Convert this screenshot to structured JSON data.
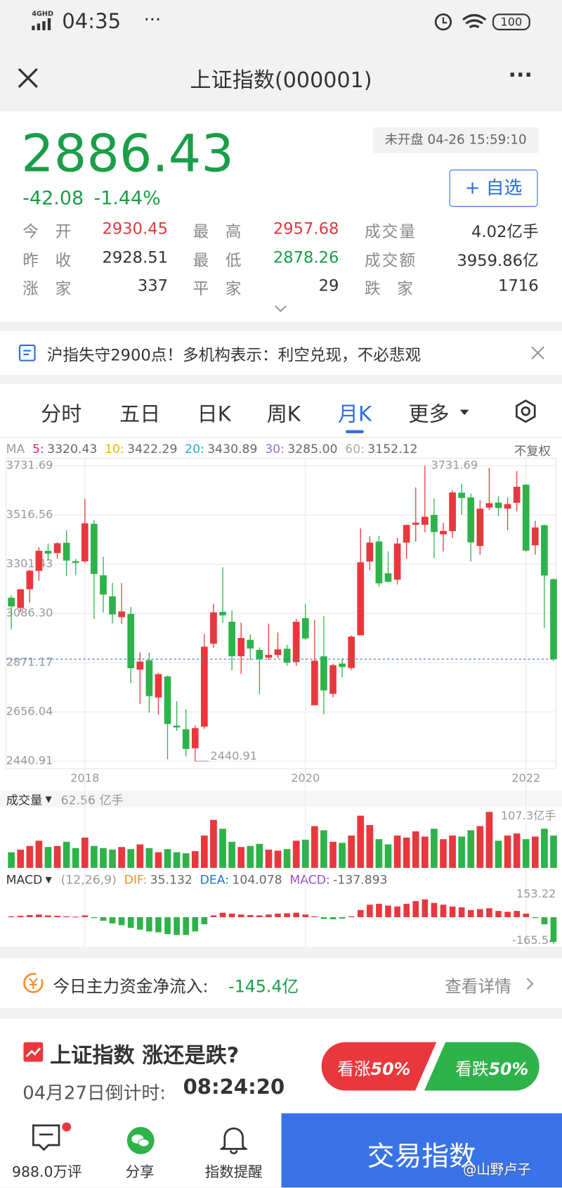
{
  "status_bar": {
    "network": "4GHD",
    "time": "04:35",
    "battery": "100"
  },
  "header": {
    "title": "上证指数(000001)"
  },
  "quote": {
    "price": "2886.43",
    "change": "-42.08",
    "change_pct": "-1.44%",
    "status": "未开盘 04-26 15:59:10",
    "watch_button": "+ 自选",
    "stats": [
      [
        {
          "label": "今开",
          "value": "2930.45",
          "color": "#e0393e"
        },
        {
          "label": "最高",
          "value": "2957.68",
          "color": "#e0393e"
        },
        {
          "label": "成交量",
          "value": "4.02亿手",
          "color": "#333333"
        }
      ],
      [
        {
          "label": "昨收",
          "value": "2928.51",
          "color": "#333333"
        },
        {
          "label": "最低",
          "value": "2878.26",
          "color": "#1a9e48"
        },
        {
          "label": "成交额",
          "value": "3959.86亿",
          "color": "#333333"
        }
      ],
      [
        {
          "label": "涨家",
          "value": "337",
          "color": "#333333"
        },
        {
          "label": "平家",
          "value": "29",
          "color": "#333333"
        },
        {
          "label": "跌家",
          "value": "1716",
          "color": "#333333"
        }
      ]
    ]
  },
  "news": {
    "text": "沪指失守2900点！多机构表示：利空兑现，不必悲观"
  },
  "tabs": {
    "items": [
      "分时",
      "五日",
      "日K",
      "周K",
      "月K",
      "更多"
    ],
    "active": 4
  },
  "chart": {
    "type": "candlestick",
    "up_color": "#e8383d",
    "down_color": "#2eb24a",
    "ma_label": "MA",
    "adjust": "不复权",
    "ma": [
      {
        "name": "5:",
        "value": 3320.43,
        "color": "#e0218a"
      },
      {
        "name": "10:",
        "value": 3422.29,
        "color": "#e6b800"
      },
      {
        "name": "20:",
        "value": 3430.89,
        "color": "#1ab0d8"
      },
      {
        "name": "30:",
        "value": 3285.0,
        "value_label": "3285.00",
        "color": "#9b6bd6"
      },
      {
        "name": "60:",
        "value": 3152.12,
        "color": "#b5a89a"
      }
    ],
    "ylim": [
      2440.91,
      3731.69
    ],
    "yticks": [
      3731.69,
      3516.56,
      3301.43,
      {
        "value": 3086.3,
        "label": "3086.30"
      },
      2871.17,
      2656.04,
      2440.91
    ],
    "xticks": [
      {
        "value": 8,
        "label": "2018"
      },
      {
        "value": 32,
        "label": "2020"
      },
      {
        "value": 56,
        "label": "2022"
      }
    ],
    "high_annotation": 3731.69,
    "low_annotation": 2440.91,
    "candles": [
      [
        3155,
        3165,
        3016,
        3117
      ],
      [
        3110,
        3192,
        3092,
        3192
      ],
      [
        3192,
        3276,
        3134,
        3273
      ],
      [
        3272,
        3376,
        3229,
        3360
      ],
      [
        3360,
        3392,
        3317,
        3348
      ],
      [
        3350,
        3398,
        3326,
        3393
      ],
      [
        3395,
        3450,
        3250,
        3317
      ],
      [
        3315,
        3325,
        3254,
        3307
      ],
      [
        3314,
        3587,
        3307,
        3480
      ],
      [
        3478,
        3495,
        3062,
        3259
      ],
      [
        3253,
        3334,
        3091,
        3169
      ],
      [
        3161,
        3220,
        3042,
        3082
      ],
      [
        3070,
        3219,
        3041,
        3095
      ],
      [
        3084,
        3115,
        2782,
        2847
      ],
      [
        2841,
        2916,
        2691,
        2876
      ],
      [
        2882,
        2915,
        2653,
        2725
      ],
      [
        2719,
        2827,
        2644,
        2821
      ],
      [
        2811,
        2815,
        2449,
        2603
      ],
      [
        2596,
        2703,
        2573,
        2588
      ],
      [
        2580,
        2667,
        2462,
        2494
      ],
      [
        2497,
        2597,
        2440.91,
        2585
      ],
      [
        2592,
        2997,
        2582,
        2941
      ],
      [
        2954,
        3129,
        2935,
        3091
      ],
      [
        3093,
        3288,
        3045,
        3078
      ],
      [
        3050,
        3100,
        2838,
        2899
      ],
      [
        2899,
        3047,
        2822,
        2979
      ],
      [
        2971,
        2995,
        2882,
        2933
      ],
      [
        2927,
        2938,
        2733,
        2886
      ],
      [
        2893,
        3042,
        2883,
        2905
      ],
      [
        2905,
        3003,
        2891,
        2929
      ],
      [
        2932,
        2949,
        2858,
        2871
      ],
      [
        2874,
        3063,
        2857,
        3050
      ],
      [
        3066,
        3127,
        2970,
        2977
      ],
      [
        2685,
        3058,
        2685,
        2880
      ],
      [
        2899,
        3074,
        2646,
        2750
      ],
      [
        2735,
        2866,
        2719,
        2860
      ],
      [
        2867,
        2891,
        2808,
        2852
      ],
      [
        2848,
        2990,
        2840,
        2985
      ],
      [
        2991,
        3458,
        2991,
        3310
      ],
      [
        3313,
        3424,
        3275,
        3396
      ],
      [
        3401,
        3425,
        3202,
        3218
      ],
      [
        3262,
        3358,
        3221,
        3225
      ],
      [
        3234,
        3417,
        3213,
        3392
      ],
      [
        3396,
        3474,
        3326,
        3473
      ],
      [
        3474,
        3637,
        3400,
        3483
      ],
      [
        3474,
        3731.69,
        3441,
        3509
      ],
      [
        3517,
        3588,
        3328,
        3442
      ],
      [
        3432,
        3482,
        3357,
        3447
      ],
      [
        3446,
        3625,
        3416,
        3615
      ],
      [
        3614,
        3654,
        3518,
        3591
      ],
      [
        3593,
        3610,
        3313,
        3397
      ],
      [
        3381,
        3581,
        3343,
        3544
      ],
      [
        3549,
        3723,
        3538,
        3568
      ],
      [
        3571,
        3599,
        3513,
        3547
      ],
      [
        3544,
        3592,
        3450,
        3564
      ],
      [
        3570,
        3708,
        3532,
        3640
      ],
      [
        3649,
        3651,
        3357,
        3361
      ],
      [
        3384,
        3491,
        3344,
        3462
      ],
      [
        3472,
        3475,
        3023,
        3252
      ],
      [
        3236,
        3239,
        2878.26,
        2886.43
      ]
    ],
    "volume": {
      "label": "成交量",
      "value_text": "62.56 亿手",
      "ylim": [
        0,
        107.3
      ],
      "yticks": [
        {
          "value": 107.3,
          "label": "107.3亿手"
        }
      ],
      "values": [
        30,
        35,
        42,
        52,
        40,
        42,
        50,
        38,
        58,
        42,
        38,
        35,
        40,
        36,
        45,
        38,
        30,
        36,
        30,
        28,
        32,
        62,
        92,
        75,
        50,
        40,
        42,
        46,
        35,
        33,
        36,
        52,
        54,
        80,
        72,
        50,
        48,
        62,
        100,
        82,
        55,
        45,
        62,
        58,
        70,
        60,
        75,
        55,
        62,
        60,
        72,
        80,
        107.3,
        52,
        62,
        66,
        55,
        60,
        75,
        62
      ]
    },
    "macd": {
      "label": "MACD",
      "params": "(12,26,9)",
      "dif": {
        "name": "DIF:",
        "value": 35.132,
        "color": "#f0902a"
      },
      "dea": {
        "name": "DEA:",
        "value": 104.078,
        "color": "#1a78d4"
      },
      "macd": {
        "name": "MACD:",
        "value": -137.893,
        "color": "#9b4fc4"
      },
      "ylim": [
        -165.54,
        153.22
      ],
      "yticks": [
        -165.54,
        153.22
      ],
      "values": [
        5,
        8,
        12,
        15,
        10,
        8,
        5,
        3,
        10,
        -5,
        -20,
        -35,
        -45,
        -60,
        -70,
        -80,
        -85,
        -95,
        -100,
        -100,
        -80,
        -40,
        10,
        25,
        20,
        15,
        12,
        10,
        15,
        20,
        22,
        25,
        15,
        5,
        -10,
        -12,
        -8,
        5,
        40,
        70,
        75,
        65,
        60,
        75,
        90,
        100,
        80,
        70,
        60,
        55,
        40,
        45,
        50,
        35,
        30,
        35,
        20,
        -5,
        -40,
        -137.893
      ]
    }
  },
  "fund_flow": {
    "label": "今日主力资金净流入:",
    "value": "-145.4亿",
    "link": "查看详情"
  },
  "vote": {
    "title": "上证指数 涨还是跌?",
    "countdown_label": "04月27日倒计时:",
    "countdown": "08:24:20",
    "up": {
      "label": "看涨",
      "pct": "50%"
    },
    "down": {
      "label": "看跌",
      "pct": "50%"
    }
  },
  "nav": {
    "comments": "988.0万评",
    "share": "分享",
    "alert": "指数提醒",
    "trade": "交易指数"
  },
  "watermark": "@山野卢子"
}
